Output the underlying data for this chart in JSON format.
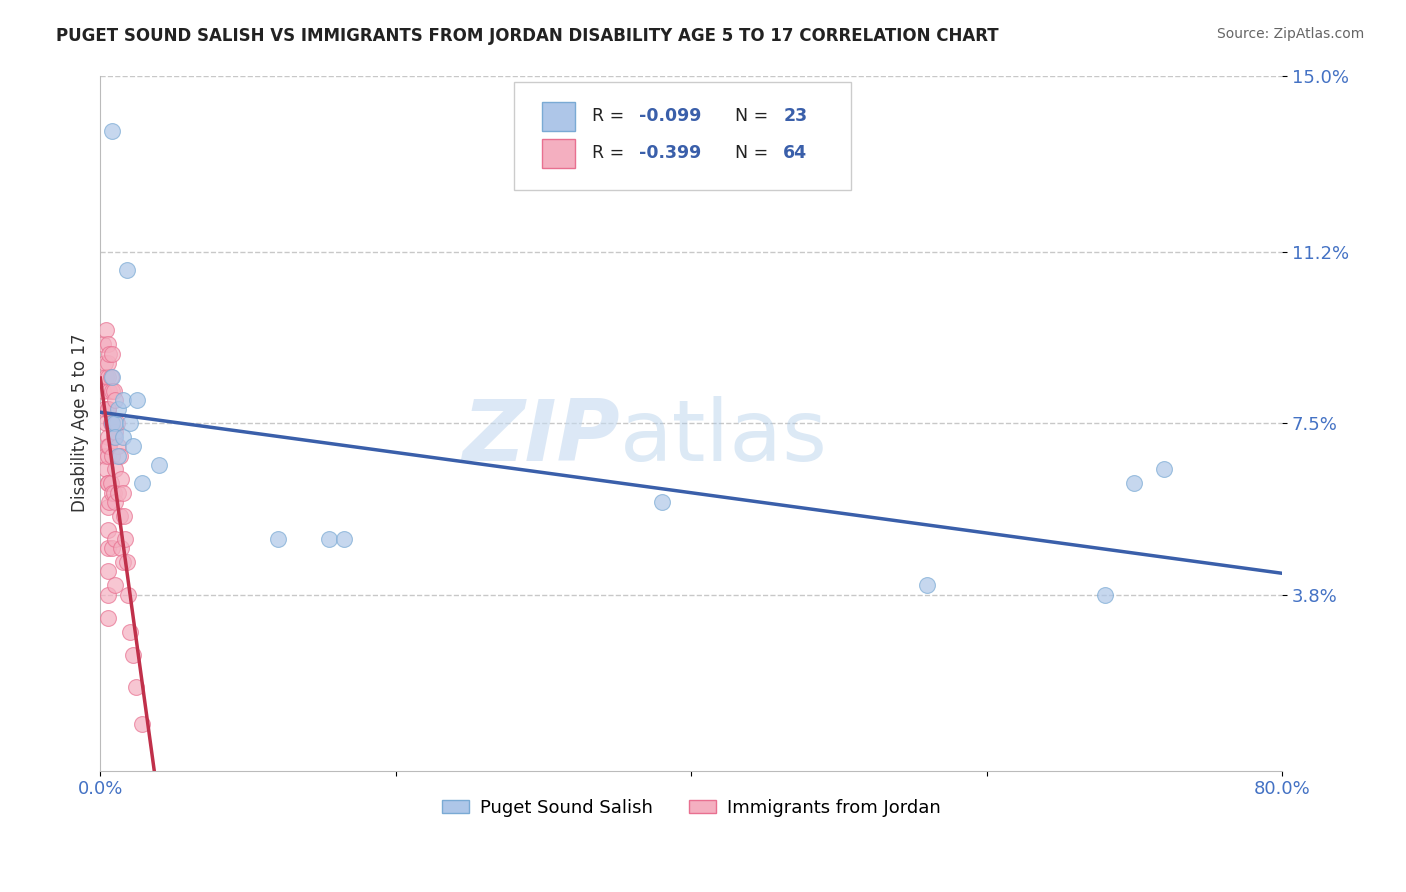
{
  "title": "PUGET SOUND SALISH VS IMMIGRANTS FROM JORDAN DISABILITY AGE 5 TO 17 CORRELATION CHART",
  "source": "Source: ZipAtlas.com",
  "ylabel": "Disability Age 5 to 17",
  "xlim": [
    0.0,
    0.8
  ],
  "ylim": [
    0.0,
    0.15
  ],
  "yticks": [
    0.038,
    0.075,
    0.112,
    0.15
  ],
  "ytick_labels": [
    "3.8%",
    "7.5%",
    "11.2%",
    "15.0%"
  ],
  "xticks": [
    0.0,
    0.2,
    0.4,
    0.6,
    0.8
  ],
  "xtick_labels": [
    "0.0%",
    "",
    "",
    "",
    "80.0%"
  ],
  "background_color": "#ffffff",
  "grid_color": "#c8c8c8",
  "watermark_zip": "ZIP",
  "watermark_atlas": "atlas",
  "series1_color": "#aec6e8",
  "series1_edge": "#7aaad4",
  "series2_color": "#f4afc0",
  "series2_edge": "#e87090",
  "series1_line_color": "#3a5faa",
  "series2_line_color": "#c0304a",
  "series1_label": "Puget Sound Salish",
  "series2_label": "Immigrants from Jordan",
  "series1_R": -0.099,
  "series1_N": 23,
  "series2_R": -0.399,
  "series2_N": 64,
  "series1_x": [
    0.008,
    0.008,
    0.008,
    0.01,
    0.01,
    0.012,
    0.012,
    0.015,
    0.015,
    0.018,
    0.02,
    0.022,
    0.025,
    0.028,
    0.04,
    0.12,
    0.155,
    0.165,
    0.38,
    0.56,
    0.68,
    0.7,
    0.72
  ],
  "series1_y": [
    0.138,
    0.085,
    0.075,
    0.075,
    0.072,
    0.078,
    0.068,
    0.08,
    0.072,
    0.108,
    0.075,
    0.07,
    0.08,
    0.062,
    0.066,
    0.05,
    0.05,
    0.05,
    0.058,
    0.04,
    0.038,
    0.062,
    0.065
  ],
  "series2_x": [
    0.002,
    0.002,
    0.003,
    0.003,
    0.003,
    0.004,
    0.004,
    0.004,
    0.004,
    0.005,
    0.005,
    0.005,
    0.005,
    0.005,
    0.005,
    0.005,
    0.005,
    0.005,
    0.005,
    0.005,
    0.005,
    0.005,
    0.005,
    0.005,
    0.005,
    0.006,
    0.006,
    0.006,
    0.006,
    0.007,
    0.007,
    0.007,
    0.008,
    0.008,
    0.008,
    0.008,
    0.008,
    0.008,
    0.009,
    0.009,
    0.009,
    0.01,
    0.01,
    0.01,
    0.01,
    0.01,
    0.01,
    0.011,
    0.012,
    0.012,
    0.013,
    0.013,
    0.014,
    0.014,
    0.015,
    0.015,
    0.016,
    0.017,
    0.018,
    0.019,
    0.02,
    0.022,
    0.024,
    0.028
  ],
  "series2_y": [
    0.092,
    0.082,
    0.088,
    0.078,
    0.068,
    0.095,
    0.085,
    0.075,
    0.065,
    0.092,
    0.085,
    0.078,
    0.072,
    0.068,
    0.062,
    0.057,
    0.052,
    0.048,
    0.043,
    0.038,
    0.033,
    0.088,
    0.078,
    0.07,
    0.062,
    0.09,
    0.082,
    0.07,
    0.058,
    0.085,
    0.075,
    0.062,
    0.09,
    0.082,
    0.075,
    0.068,
    0.06,
    0.048,
    0.082,
    0.072,
    0.06,
    0.08,
    0.073,
    0.065,
    0.058,
    0.05,
    0.04,
    0.075,
    0.07,
    0.06,
    0.068,
    0.055,
    0.063,
    0.048,
    0.06,
    0.045,
    0.055,
    0.05,
    0.045,
    0.038,
    0.03,
    0.025,
    0.018,
    0.01
  ]
}
